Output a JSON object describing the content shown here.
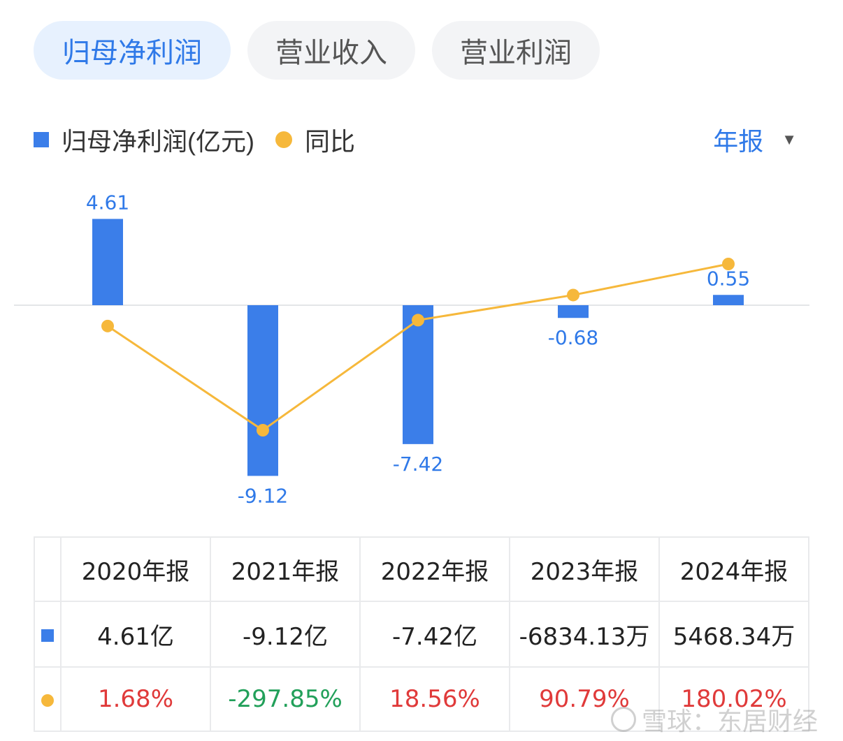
{
  "tabs": [
    {
      "label": "归母净利润",
      "active": true
    },
    {
      "label": "营业收入",
      "active": false
    },
    {
      "label": "营业利润",
      "active": false
    }
  ],
  "legend": {
    "bar_label": "归母净利润(亿元)",
    "line_label": "同比"
  },
  "period": {
    "label": "年报",
    "caret": "▼"
  },
  "colors": {
    "bar": "#3b7ee9",
    "line": "#f6b83b",
    "active_tab": "#2f79e8",
    "positive": "#e03a3a",
    "negative": "#22a05a"
  },
  "chart_data": {
    "type": "bar",
    "categories": [
      "2020年报",
      "2021年报",
      "2022年报",
      "2023年报",
      "2024年报"
    ],
    "series": [
      {
        "name": "归母净利润(亿元)",
        "type": "bar",
        "values": [
          4.61,
          -9.12,
          -7.42,
          -0.68,
          0.55
        ],
        "labels": [
          "4.61",
          "-9.12",
          "-7.42",
          "-0.68",
          "0.55"
        ]
      },
      {
        "name": "同比",
        "type": "line",
        "values": [
          1.68,
          -297.85,
          18.56,
          90.79,
          180.02
        ]
      }
    ]
  },
  "table": {
    "headers": [
      "2020年报",
      "2021年报",
      "2022年报",
      "2023年报",
      "2024年报"
    ],
    "profit_row": [
      "4.61亿",
      "-9.12亿",
      "-7.42亿",
      "-6834.13万",
      "5468.34万"
    ],
    "yoy_row": [
      "1.68%",
      "-297.85%",
      "18.56%",
      "90.79%",
      "180.02%"
    ]
  },
  "watermark": "雪球：东居财经"
}
